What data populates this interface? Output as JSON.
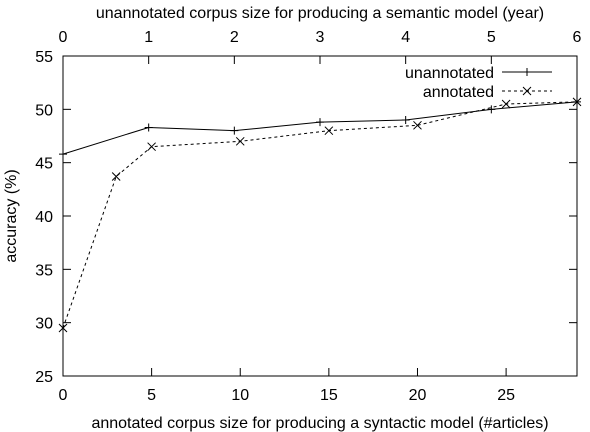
{
  "chart_data": {
    "type": "line",
    "title": "",
    "xlabel": "annotated corpus size for producing a syntactic model (#articles)",
    "ylabel": "accuracy (%)",
    "x2label": "unannotated corpus size for producing a semantic model (year)",
    "xlim": [
      0,
      29
    ],
    "ylim": [
      25,
      55
    ],
    "x2lim": [
      0,
      6
    ],
    "xticks": [
      0,
      5,
      10,
      15,
      20,
      25
    ],
    "yticks": [
      25,
      30,
      35,
      40,
      45,
      50,
      55
    ],
    "x2ticks": [
      0,
      1,
      2,
      3,
      4,
      5,
      6
    ],
    "grid": false,
    "legend_position": "top-right",
    "series": [
      {
        "name": "unannotated",
        "axis": "top",
        "line_style": "solid",
        "marker": "plus",
        "color": "#000000",
        "points": [
          {
            "x": 0,
            "y": 45.8
          },
          {
            "x": 1,
            "y": 48.3
          },
          {
            "x": 2,
            "y": 48.0
          },
          {
            "x": 3,
            "y": 48.8
          },
          {
            "x": 4,
            "y": 49.0
          },
          {
            "x": 5,
            "y": 50.0
          },
          {
            "x": 6,
            "y": 50.7
          }
        ]
      },
      {
        "name": "annotated",
        "axis": "bottom",
        "line_style": "dashed",
        "marker": "cross",
        "color": "#000000",
        "points": [
          {
            "x": 0,
            "y": 29.5
          },
          {
            "x": 3,
            "y": 43.7
          },
          {
            "x": 5,
            "y": 46.5
          },
          {
            "x": 10,
            "y": 47.0
          },
          {
            "x": 15,
            "y": 48.0
          },
          {
            "x": 20,
            "y": 48.5
          },
          {
            "x": 25,
            "y": 50.5
          },
          {
            "x": 29,
            "y": 50.7
          }
        ]
      }
    ]
  }
}
